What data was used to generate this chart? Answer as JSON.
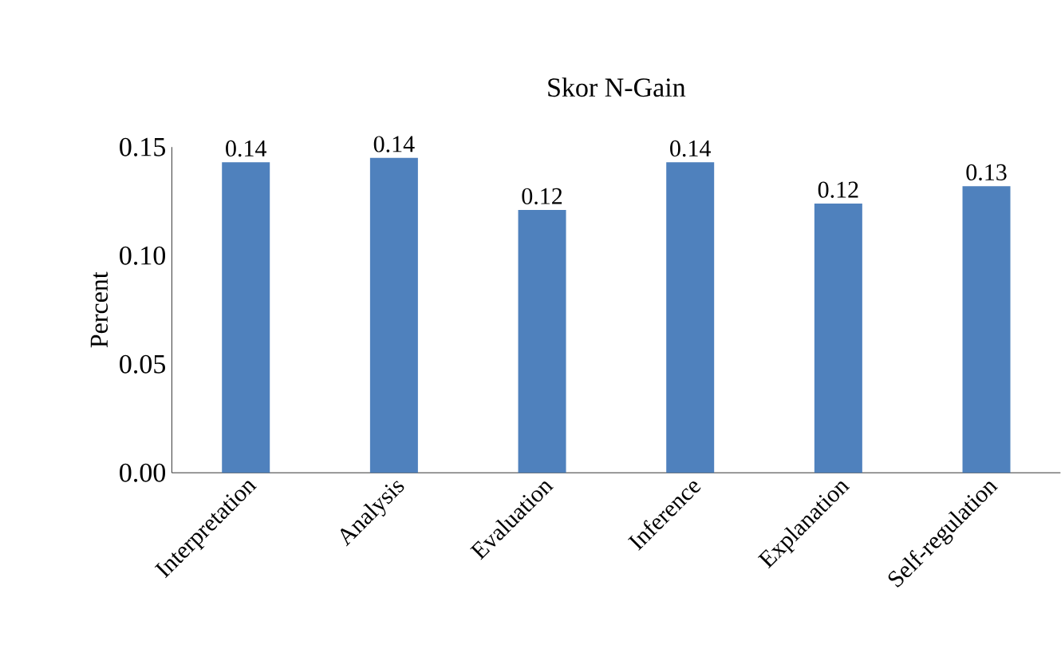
{
  "chart_data": {
    "type": "bar",
    "title": "Skor N-Gain",
    "ylabel": "Percent",
    "categories": [
      "Interpretation",
      "Analysis",
      "Evaluation",
      "Inference",
      "Explanation",
      "Self-regulation"
    ],
    "values": [
      0.143,
      0.145,
      0.121,
      0.143,
      0.124,
      0.132
    ],
    "value_labels": [
      "0.14",
      "0.14",
      "0.12",
      "0.14",
      "0.12",
      "0.13"
    ],
    "color": "#4f81bd",
    "ylim": [
      0,
      0.15
    ],
    "yticks": [
      "0.00",
      "0.05",
      "0.10",
      "0.15"
    ],
    "grid": false
  }
}
